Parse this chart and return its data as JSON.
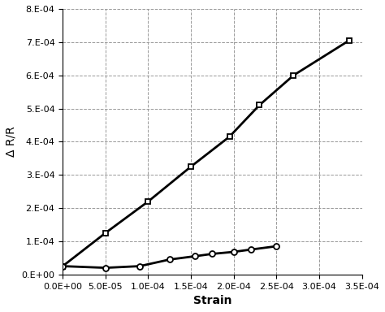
{
  "series1_x": [
    0.0,
    5e-05,
    0.0001,
    0.00015,
    0.000195,
    0.00023,
    0.00027,
    0.000335
  ],
  "series1_y": [
    2.5e-05,
    0.000125,
    0.00022,
    0.000325,
    0.000415,
    0.00051,
    0.0006,
    0.000705
  ],
  "series2_x": [
    0.0,
    5e-05,
    9e-05,
    0.000125,
    0.000155,
    0.000175,
    0.0002,
    0.00022,
    0.00025
  ],
  "series2_y": [
    2.5e-05,
    2e-05,
    2.5e-05,
    4.5e-05,
    5.5e-05,
    6.2e-05,
    6.8e-05,
    7.5e-05,
    8.5e-05
  ],
  "series1_marker": "s",
  "series2_marker": "o",
  "line_color": "black",
  "background_color": "white",
  "xlabel": "Strain",
  "ylabel": "Δ R/R",
  "xlim": [
    0.0,
    0.00035
  ],
  "ylim": [
    0.0,
    0.0008
  ],
  "xticks": [
    0.0,
    5e-05,
    0.0001,
    0.00015,
    0.0002,
    0.00025,
    0.0003,
    0.00035
  ],
  "yticks": [
    0.0,
    0.0001,
    0.0002,
    0.0003,
    0.0004,
    0.0005,
    0.0006,
    0.0007,
    0.0008
  ],
  "xlabel_fontsize": 10,
  "ylabel_fontsize": 10,
  "tick_fontsize": 8,
  "grid": true,
  "grid_style": "--",
  "grid_color": "#999999"
}
